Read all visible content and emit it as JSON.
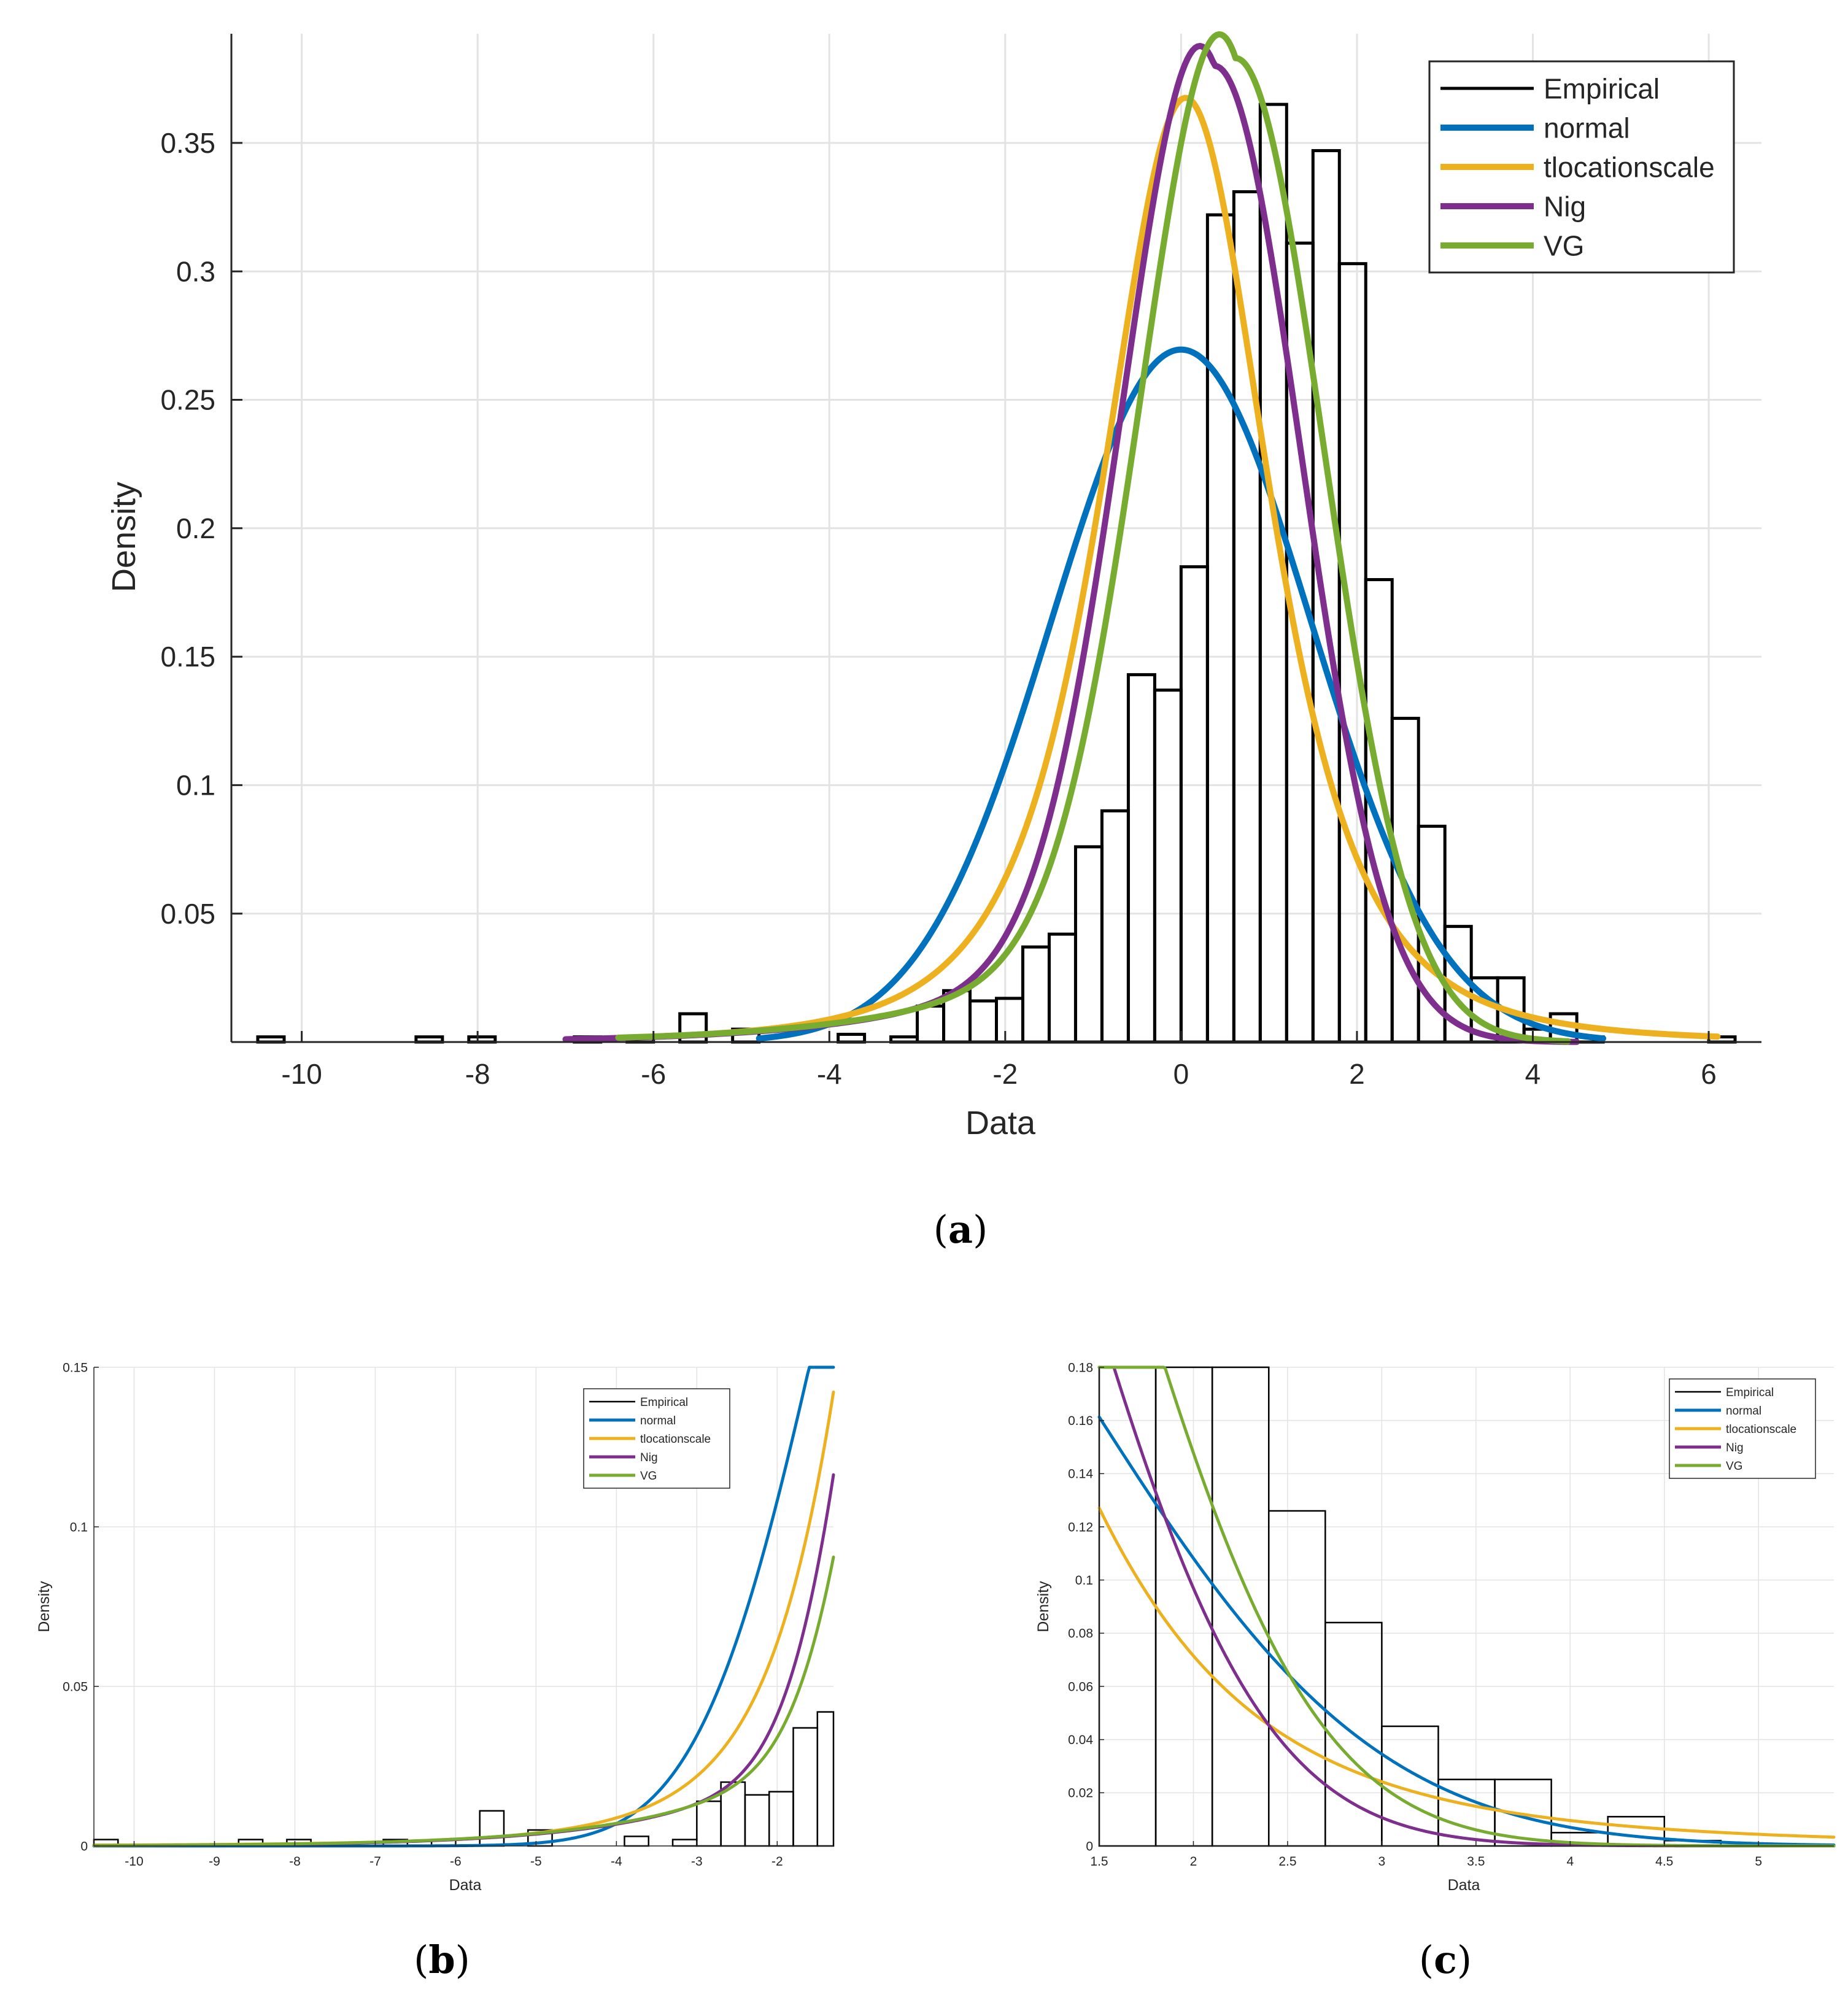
{
  "colors": {
    "empirical": "#000000",
    "normal": "#0072BD",
    "tlocationscale": "#EDB120",
    "nig": "#7E2F8E",
    "vg": "#77AC30",
    "grid": "#e3e3e3",
    "axis": "#262626"
  },
  "panels": [
    {
      "caption_letter": "a",
      "caption_open": "(",
      "caption_close": ")",
      "xlabel": "Data",
      "ylabel": "Density",
      "legend": [
        "Empirical",
        "normal",
        "tlocationscale",
        "Nig",
        "VG"
      ]
    },
    {
      "caption_letter": "b",
      "caption_open": "(",
      "caption_close": ")",
      "xlabel": "Data",
      "ylabel": "Density",
      "legend": [
        "Empirical",
        "normal",
        "tlocationscale",
        "Nig",
        "VG"
      ]
    },
    {
      "caption_letter": "c",
      "caption_open": "(",
      "caption_close": ")",
      "xlabel": "Data",
      "ylabel": "Density",
      "legend": [
        "Empirical",
        "normal",
        "tlocationscale",
        "Nig",
        "VG"
      ]
    }
  ],
  "chart_data": [
    {
      "type": "bar",
      "title": "",
      "xlabel": "Data",
      "ylabel": "Density",
      "xlim": [
        -10.8,
        6.6
      ],
      "ylim": [
        0,
        0.3925
      ],
      "xticks": [
        -10,
        -8,
        -6,
        -4,
        -2,
        0,
        2,
        4,
        6
      ],
      "xtick_labels": [
        "-10",
        "-8",
        "-6",
        "-4",
        "-2",
        "0",
        "2",
        "4",
        "6"
      ],
      "yticks": [
        0.05,
        0.1,
        0.15,
        0.2,
        0.25,
        0.3,
        0.35
      ],
      "ytick_labels": [
        "0.05",
        "0.1",
        "0.15",
        "0.2",
        "0.25",
        "0.3",
        "0.35"
      ],
      "grid": true,
      "legend_position": "top-right",
      "histogram": {
        "bin_start": -10.5,
        "bin_width": 0.3,
        "densities": [
          0.002,
          0,
          0,
          0,
          0,
          0,
          0.002,
          0,
          0.002,
          0,
          0,
          0,
          0.002,
          0,
          0.002,
          0,
          0.011,
          0,
          0.005,
          0,
          0,
          0,
          0.003,
          0,
          0.002,
          0.014,
          0.02,
          0.016,
          0.017,
          0.037,
          0.042,
          0.076,
          0.09,
          0.143,
          0.137,
          0.185,
          0.322,
          0.331,
          0.365,
          0.311,
          0.347,
          0.303,
          0.18,
          0.126,
          0.084,
          0.045,
          0.025,
          0.025,
          0.005,
          0.011,
          0.002,
          0,
          0,
          0,
          0,
          0.002
        ]
      },
      "series": [
        {
          "name": "normal",
          "dist": "normal",
          "mu": 0,
          "sigma": 1.48,
          "x_range": [
            -4.8,
            4.8
          ]
        },
        {
          "name": "tlocationscale",
          "dist": "t",
          "mu": 0.05,
          "sigma": 1.0,
          "nu": 3.0,
          "x_range": [
            -5.9,
            6.1
          ]
        },
        {
          "name": "Nig",
          "dist": "nig",
          "x_range": [
            -7.0,
            4.5
          ]
        },
        {
          "name": "VG",
          "dist": "vg",
          "x_range": [
            -6.4,
            4.4
          ]
        }
      ]
    },
    {
      "type": "bar",
      "title": "",
      "xlabel": "Data",
      "ylabel": "Density",
      "xlim": [
        -10.5,
        -1.3
      ],
      "ylim": [
        0,
        0.15
      ],
      "xticks": [
        -10,
        -9,
        -8,
        -7,
        -6,
        -5,
        -4,
        -3,
        -2
      ],
      "xtick_labels": [
        "-10",
        "-9",
        "-8",
        "-7",
        "-6",
        "-5",
        "-4",
        "-3",
        "-2"
      ],
      "yticks": [
        0,
        0.05,
        0.1,
        0.15
      ],
      "ytick_labels": [
        "0",
        "0.05",
        "0.1",
        "0.15"
      ],
      "grid": true,
      "legend_position": "top-right",
      "series": [
        {
          "name": "normal",
          "x_range": [
            -10.5,
            -1.3
          ]
        },
        {
          "name": "tlocationscale",
          "x_range": [
            -10.5,
            -1.3
          ]
        },
        {
          "name": "Nig",
          "x_range": [
            -10.5,
            -1.3
          ]
        },
        {
          "name": "VG",
          "x_range": [
            -10.5,
            -1.3
          ]
        }
      ]
    },
    {
      "type": "bar",
      "title": "",
      "xlabel": "Data",
      "ylabel": "Density",
      "xlim": [
        1.5,
        5.4
      ],
      "ylim": [
        0,
        0.18
      ],
      "xticks": [
        1.5,
        2,
        2.5,
        3,
        3.5,
        4,
        4.5,
        5
      ],
      "xtick_labels": [
        "1.5",
        "2",
        "2.5",
        "3",
        "3.5",
        "4",
        "4.5",
        "5"
      ],
      "yticks": [
        0,
        0.02,
        0.04,
        0.06,
        0.08,
        0.1,
        0.12,
        0.14,
        0.16,
        0.18
      ],
      "ytick_labels": [
        "0",
        "0.02",
        "0.04",
        "0.06",
        "0.08",
        "0.1",
        "0.12",
        "0.14",
        "0.16",
        "0.18"
      ],
      "grid": true,
      "legend_position": "top-right",
      "series": [
        {
          "name": "normal",
          "x_range": [
            1.5,
            5.4
          ]
        },
        {
          "name": "tlocationscale",
          "x_range": [
            1.5,
            5.4
          ]
        },
        {
          "name": "Nig",
          "x_range": [
            1.5,
            5.4
          ]
        },
        {
          "name": "VG",
          "x_range": [
            1.5,
            5.4
          ]
        }
      ]
    }
  ]
}
